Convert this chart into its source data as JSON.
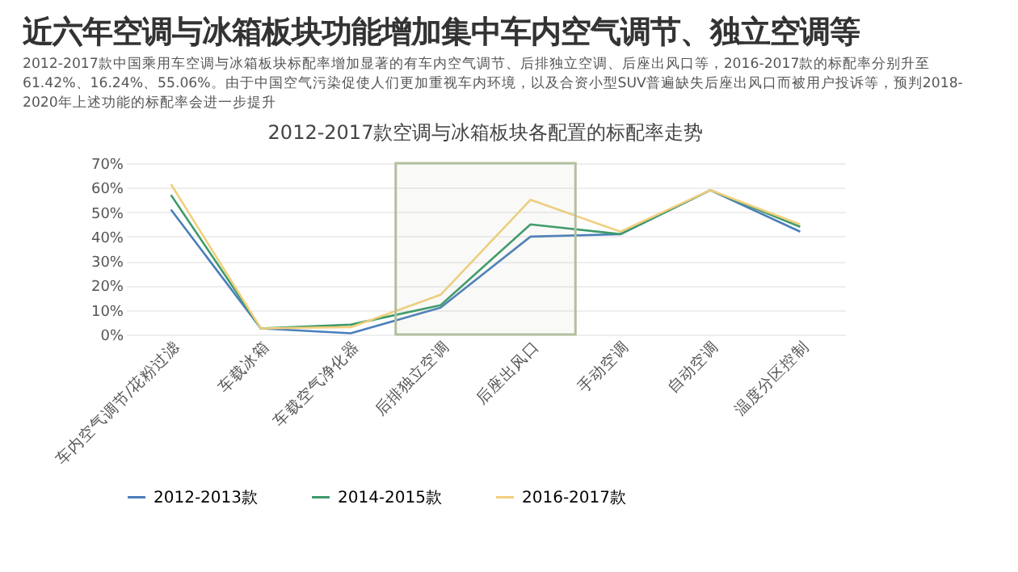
{
  "chart_data": {
    "type": "line",
    "title": "近六年空调与冰箱板块功能增加集中车内空气调节、独立空调等",
    "subtitle": "2012-2017款中国乘用车空调与冰箱板块标配率增加显著的有车内空气调节、后排独立空调、后座出风口等，2016-2017款的标配率分别升至61.42%、16.24%、55.06%。由于中国空气污染促使人们更加重视车内环境，以及合资小型SUV普遍缺失后座出风口而被用户投诉等，预判2018-2020年上述功能的标配率会进一步提升",
    "annotations": [
      "2012-2017款空调与冰箱板块各配置的标配率走势"
    ],
    "categories": [
      "车内空气调节/花粉过滤",
      "车载冰箱",
      "车载空气净化器",
      "后排独立空调",
      "后座出风口",
      "手动空调",
      "自动空调",
      "温度分区控制"
    ],
    "series": [
      {
        "name": "2012-2013款",
        "color": "#4a7ebb",
        "values": [
          51,
          2.5,
          0.5,
          11,
          40,
          41,
          59,
          42
        ]
      },
      {
        "name": "2014-2015款",
        "color": "#3c9a6a",
        "values": [
          57,
          2.5,
          4,
          12,
          45,
          41,
          59,
          44
        ]
      },
      {
        "name": "2016-2017款",
        "color": "#f2cf7e",
        "values": [
          61.42,
          2.5,
          3,
          16.24,
          55.06,
          42,
          59,
          45
        ]
      }
    ],
    "ylim": [
      0,
      70
    ],
    "yticks": [
      {
        "value": 0,
        "label": "0%"
      },
      {
        "value": 10,
        "label": "10%"
      },
      {
        "value": 20,
        "label": "20%"
      },
      {
        "value": 30,
        "label": "30%"
      },
      {
        "value": 40,
        "label": "40%"
      },
      {
        "value": 50,
        "label": "50%"
      },
      {
        "value": 60,
        "label": "60%"
      },
      {
        "value": 70,
        "label": "70%"
      }
    ],
    "bands": [
      {
        "axis": "x",
        "from": "后排独立空调",
        "to": "后座出风口",
        "color": "#b3bf9f"
      }
    ],
    "grid": "y",
    "legend": "bottom",
    "marker": "none",
    "line_style": "solid"
  }
}
